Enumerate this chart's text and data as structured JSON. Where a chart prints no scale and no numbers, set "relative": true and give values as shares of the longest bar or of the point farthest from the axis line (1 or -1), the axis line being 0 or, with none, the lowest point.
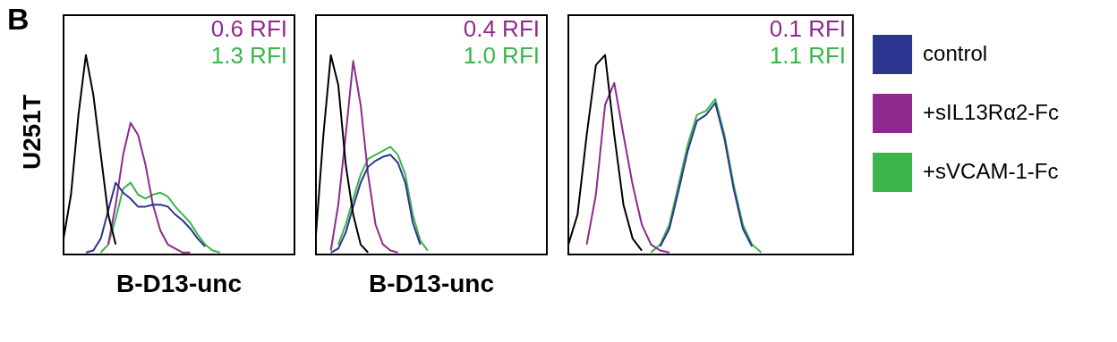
{
  "chart_data": [
    {
      "type": "line",
      "title": "B",
      "ylabel": "U251T",
      "xlabel": "B-D13-unc",
      "relative": true,
      "legend": false,
      "marker": "none",
      "line_style": "solid",
      "grid": false,
      "tick_labels": false,
      "categories": [
        null,
        null,
        null,
        null,
        null,
        null,
        null,
        null,
        null,
        null,
        null,
        null,
        null,
        null,
        null,
        null,
        null,
        null,
        null,
        null,
        null,
        null,
        null,
        null,
        null,
        null,
        null,
        null,
        null,
        null,
        null,
        null
      ],
      "annotations": [
        "0.6 RFI",
        "1.3 RFI"
      ],
      "series": [
        {
          "color": "#000000",
          "values": [
            0.08,
            0.3,
            0.7,
            1.0,
            0.8,
            0.5,
            0.2,
            0.05,
            null,
            null,
            null,
            null,
            null,
            null,
            null,
            null,
            null,
            null,
            null,
            null,
            null,
            null,
            null,
            null,
            null,
            null,
            null,
            null,
            null,
            null,
            null,
            null
          ]
        },
        {
          "color": "#2b3590",
          "values": [
            null,
            null,
            null,
            0.01,
            0.02,
            0.08,
            0.22,
            0.36,
            0.31,
            0.28,
            0.24,
            0.24,
            0.25,
            0.25,
            0.24,
            0.2,
            0.17,
            0.13,
            0.08,
            0.04,
            null,
            null,
            null,
            null,
            null,
            null,
            null,
            null,
            null,
            null,
            null,
            null
          ]
        },
        {
          "color": "#8e2a8e",
          "values": [
            null,
            null,
            null,
            null,
            null,
            null,
            0.05,
            0.25,
            0.5,
            0.66,
            0.6,
            0.45,
            0.25,
            0.12,
            0.05,
            0.03,
            0.01,
            0.01,
            null,
            null,
            null,
            null,
            null,
            null,
            null,
            null,
            null,
            null,
            null,
            null,
            null,
            null
          ]
        },
        {
          "color": "#3bb54a",
          "values": [
            null,
            null,
            null,
            null,
            null,
            0.01,
            0.05,
            0.18,
            0.33,
            0.36,
            0.3,
            0.28,
            0.3,
            0.31,
            0.29,
            0.24,
            0.2,
            0.16,
            0.1,
            0.05,
            0.02,
            0.01,
            null,
            null,
            null,
            null,
            null,
            null,
            null,
            null,
            null,
            null
          ]
        }
      ]
    },
    {
      "type": "line",
      "xlabel": "B-D13-unc",
      "relative": true,
      "legend": false,
      "marker": "none",
      "line_style": "solid",
      "grid": false,
      "tick_labels": false,
      "categories": [
        null,
        null,
        null,
        null,
        null,
        null,
        null,
        null,
        null,
        null,
        null,
        null,
        null,
        null,
        null,
        null,
        null,
        null,
        null,
        null,
        null,
        null,
        null,
        null,
        null,
        null,
        null,
        null,
        null,
        null,
        null,
        null
      ],
      "annotations": [
        "0.4 RFI",
        "1.0 RFI"
      ],
      "series": [
        {
          "color": "#000000",
          "values": [
            0.1,
            0.6,
            1.0,
            0.85,
            0.45,
            0.2,
            0.05,
            0.01,
            null,
            null,
            null,
            null,
            null,
            null,
            null,
            null,
            null,
            null,
            null,
            null,
            null,
            null,
            null,
            null,
            null,
            null,
            null,
            null,
            null,
            null,
            null,
            null
          ]
        },
        {
          "color": "#2b3590",
          "values": [
            null,
            null,
            0.01,
            0.03,
            0.11,
            0.24,
            0.36,
            0.44,
            0.47,
            0.49,
            0.5,
            0.46,
            0.36,
            0.16,
            0.05,
            null,
            null,
            null,
            null,
            null,
            null,
            null,
            null,
            null,
            null,
            null,
            null,
            null,
            null,
            null,
            null,
            null
          ]
        },
        {
          "color": "#8e2a8e",
          "values": [
            null,
            null,
            0.02,
            0.25,
            0.6,
            0.97,
            0.75,
            0.4,
            0.15,
            0.05,
            0.02,
            0.01,
            null,
            null,
            null,
            null,
            null,
            null,
            null,
            null,
            null,
            null,
            null,
            null,
            null,
            null,
            null,
            null,
            null,
            null,
            null,
            null
          ]
        },
        {
          "color": "#3bb54a",
          "values": [
            null,
            null,
            null,
            0.05,
            0.15,
            0.28,
            0.4,
            0.48,
            0.5,
            0.52,
            0.54,
            0.5,
            0.4,
            0.2,
            0.07,
            0.02,
            null,
            null,
            null,
            null,
            null,
            null,
            null,
            null,
            null,
            null,
            null,
            null,
            null,
            null,
            null,
            null
          ]
        }
      ]
    },
    {
      "type": "line",
      "relative": true,
      "legend": "right",
      "marker": "none",
      "line_style": "solid",
      "grid": false,
      "tick_labels": false,
      "categories": [
        null,
        null,
        null,
        null,
        null,
        null,
        null,
        null,
        null,
        null,
        null,
        null,
        null,
        null,
        null,
        null,
        null,
        null,
        null,
        null,
        null,
        null,
        null,
        null,
        null,
        null,
        null,
        null,
        null,
        null,
        null,
        null
      ],
      "annotations": [
        "0.1 RFI",
        "1.1 RFI"
      ],
      "series": [
        {
          "color": "#000000",
          "values": [
            0.05,
            0.2,
            0.6,
            0.95,
            1.0,
            0.6,
            0.25,
            0.08,
            0.02,
            null,
            null,
            null,
            null,
            null,
            null,
            null,
            null,
            null,
            null,
            null,
            null,
            null,
            null,
            null,
            null,
            null,
            null,
            null,
            null,
            null,
            null,
            null
          ]
        },
        {
          "name": "control",
          "color": "#2b3590",
          "values": [
            null,
            null,
            null,
            null,
            null,
            null,
            null,
            null,
            null,
            null,
            0.04,
            0.13,
            0.32,
            0.52,
            0.67,
            0.7,
            0.76,
            0.58,
            0.33,
            0.13,
            0.04,
            null,
            null,
            null,
            null,
            null,
            null,
            null,
            null,
            null,
            null,
            null
          ]
        },
        {
          "name": "+sIL13Rα2-Fc",
          "color": "#8e2a8e",
          "values": [
            null,
            null,
            0.05,
            0.3,
            0.75,
            0.86,
            0.6,
            0.35,
            0.15,
            0.05,
            0.02,
            0.01,
            null,
            null,
            null,
            null,
            null,
            null,
            null,
            null,
            null,
            null,
            null,
            null,
            null,
            null,
            null,
            null,
            null,
            null,
            null,
            null
          ]
        },
        {
          "name": "+sVCAM-1-Fc",
          "color": "#3bb54a",
          "values": [
            null,
            null,
            null,
            null,
            null,
            null,
            null,
            null,
            null,
            0.01,
            0.05,
            0.15,
            0.35,
            0.55,
            0.7,
            0.72,
            0.78,
            0.6,
            0.35,
            0.15,
            0.05,
            0.01,
            null,
            null,
            null,
            null,
            null,
            null,
            null,
            null,
            null,
            null
          ]
        }
      ]
    }
  ]
}
